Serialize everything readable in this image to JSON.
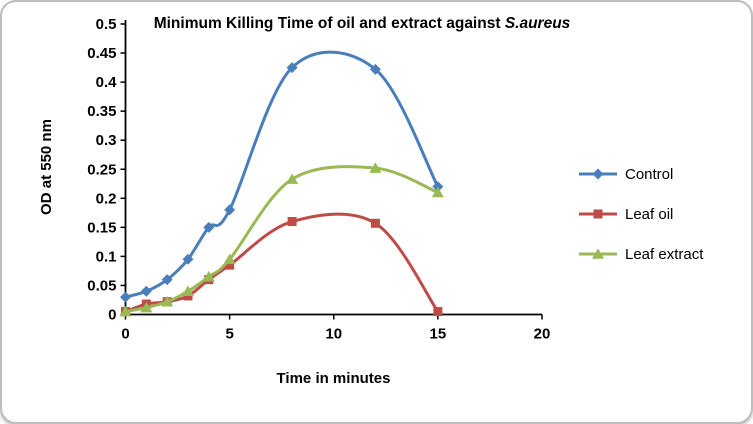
{
  "chart_data": {
    "type": "line",
    "title": "Minimum Killing Time of oil and extract against ",
    "title_italic": "S.aureus",
    "xlabel": "Time in minutes",
    "ylabel": "OD at 550 nm",
    "xlim": [
      0,
      20
    ],
    "ylim": [
      0,
      0.5
    ],
    "x_ticks": [
      0,
      5,
      10,
      15,
      20
    ],
    "x_tick_labels": [
      "0",
      "5",
      "10",
      "15",
      "20"
    ],
    "y_ticks": [
      0,
      0.05,
      0.1,
      0.15,
      0.2,
      0.25,
      0.3,
      0.35,
      0.4,
      0.45,
      0.5
    ],
    "y_tick_labels": [
      "0",
      "0.05",
      "0.1",
      "0.15",
      "0.2",
      "0.25",
      "0.3",
      "0.35",
      "0.4",
      "0.45",
      "0.5"
    ],
    "x": [
      0,
      1,
      2,
      3,
      4,
      5,
      8,
      12,
      15
    ],
    "series": [
      {
        "name": "Control",
        "color": "#4a7ebb",
        "marker": "diamond",
        "values": [
          0.03,
          0.04,
          0.06,
          0.095,
          0.15,
          0.18,
          0.425,
          0.422,
          0.22
        ]
      },
      {
        "name": "Leaf oil",
        "color": "#be4b48",
        "marker": "square",
        "values": [
          0.005,
          0.018,
          0.022,
          0.032,
          0.06,
          0.085,
          0.16,
          0.157,
          0.005
        ]
      },
      {
        "name": "Leaf extract",
        "color": "#98b954",
        "marker": "triangle",
        "values": [
          0.005,
          0.012,
          0.022,
          0.04,
          0.065,
          0.095,
          0.233,
          0.252,
          0.21
        ]
      }
    ],
    "legend_position": "right",
    "grid": false,
    "smooth_lines": true
  }
}
